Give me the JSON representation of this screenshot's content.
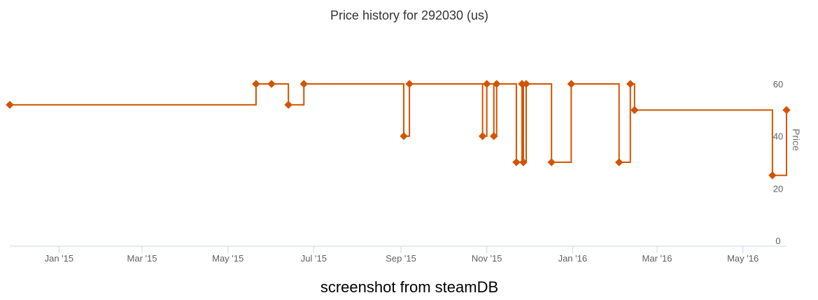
{
  "chart_data": {
    "type": "line",
    "step": true,
    "title": "Price history for 292030 (us)",
    "xlabel": "",
    "ylabel": "Price",
    "ylim": [
      0,
      60
    ],
    "yticks": [
      0,
      20,
      40,
      60
    ],
    "x_tick_labels": [
      {
        "date": "2015-01-01",
        "label": "Jan '15"
      },
      {
        "date": "2015-03-01",
        "label": "Mar '15"
      },
      {
        "date": "2015-05-01",
        "label": "May '15"
      },
      {
        "date": "2015-07-01",
        "label": "Jul '15"
      },
      {
        "date": "2015-09-01",
        "label": "Sep '15"
      },
      {
        "date": "2015-11-01",
        "label": "Nov '15"
      },
      {
        "date": "2016-01-01",
        "label": "Jan '16"
      },
      {
        "date": "2016-03-01",
        "label": "Mar '16"
      },
      {
        "date": "2016-05-01",
        "label": "May '16"
      }
    ],
    "xlim": [
      "2014-11-27",
      "2016-06-01"
    ],
    "grid": false,
    "color": "#d35400",
    "series": [
      {
        "name": "",
        "points": [
          {
            "x": "2014-11-27",
            "y": 51.99
          },
          {
            "x": "2015-05-21",
            "y": 59.99
          },
          {
            "x": "2015-06-01",
            "y": 59.99
          },
          {
            "x": "2015-06-13",
            "y": 51.99
          },
          {
            "x": "2015-06-24",
            "y": 59.99
          },
          {
            "x": "2015-09-03",
            "y": 39.99
          },
          {
            "x": "2015-09-07",
            "y": 59.99
          },
          {
            "x": "2015-10-29",
            "y": 39.99
          },
          {
            "x": "2015-11-01",
            "y": 59.99
          },
          {
            "x": "2015-11-06",
            "y": 39.99
          },
          {
            "x": "2015-11-08",
            "y": 59.99
          },
          {
            "x": "2015-11-22",
            "y": 29.99
          },
          {
            "x": "2015-11-26",
            "y": 59.99
          },
          {
            "x": "2015-11-27",
            "y": 29.99
          },
          {
            "x": "2015-11-29",
            "y": 59.99
          },
          {
            "x": "2015-12-17",
            "y": 29.99
          },
          {
            "x": "2015-12-31",
            "y": 59.99
          },
          {
            "x": "2016-02-03",
            "y": 29.99
          },
          {
            "x": "2016-02-11",
            "y": 59.99
          },
          {
            "x": "2016-02-14",
            "y": 49.99
          },
          {
            "x": "2016-05-22",
            "y": 24.99
          },
          {
            "x": "2016-06-01",
            "y": 49.99
          }
        ]
      }
    ]
  },
  "caption": "screenshot from steamDB"
}
